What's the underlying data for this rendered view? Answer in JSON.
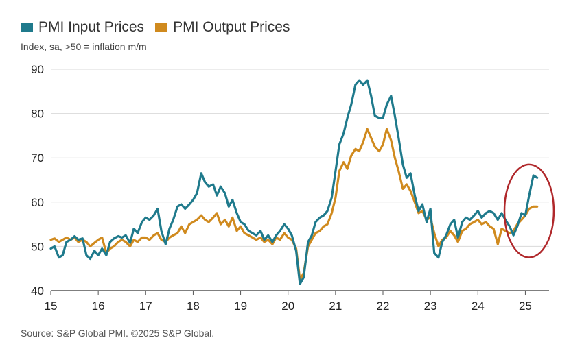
{
  "chart_data": {
    "type": "line",
    "title": "",
    "subtitle": "Index, sa, >50 = inflation m/m",
    "xlabel": "",
    "ylabel": "",
    "ylim": [
      40,
      90
    ],
    "yticks": [
      40,
      50,
      60,
      70,
      80,
      90
    ],
    "xlim": [
      2015,
      2025.5
    ],
    "xticks": [
      2015,
      2016,
      2017,
      2018,
      2019,
      2020,
      2021,
      2022,
      2023,
      2024,
      2025
    ],
    "xtick_labels": [
      "15",
      "16",
      "17",
      "18",
      "19",
      "20",
      "21",
      "22",
      "23",
      "24",
      "25"
    ],
    "legend": "top-left",
    "grid": "horizontal",
    "series": [
      {
        "name": "PMI Input Prices",
        "color": "#1f7a8c",
        "points": [
          [
            2015.0,
            49.5
          ],
          [
            2015.08,
            50.0
          ],
          [
            2015.17,
            47.5
          ],
          [
            2015.25,
            48.0
          ],
          [
            2015.33,
            51.0
          ],
          [
            2015.42,
            51.5
          ],
          [
            2015.5,
            52.3
          ],
          [
            2015.58,
            51.5
          ],
          [
            2015.67,
            51.8
          ],
          [
            2015.75,
            48.0
          ],
          [
            2015.83,
            47.2
          ],
          [
            2015.92,
            49.0
          ],
          [
            2016.0,
            48.0
          ],
          [
            2016.08,
            49.5
          ],
          [
            2016.17,
            48.0
          ],
          [
            2016.25,
            51.0
          ],
          [
            2016.33,
            51.8
          ],
          [
            2016.42,
            52.3
          ],
          [
            2016.5,
            52.0
          ],
          [
            2016.58,
            52.5
          ],
          [
            2016.67,
            50.8
          ],
          [
            2016.75,
            54.0
          ],
          [
            2016.83,
            53.0
          ],
          [
            2016.92,
            55.5
          ],
          [
            2017.0,
            56.5
          ],
          [
            2017.08,
            56.0
          ],
          [
            2017.17,
            57.0
          ],
          [
            2017.25,
            58.5
          ],
          [
            2017.33,
            53.5
          ],
          [
            2017.42,
            50.5
          ],
          [
            2017.5,
            54.0
          ],
          [
            2017.58,
            56.0
          ],
          [
            2017.67,
            59.0
          ],
          [
            2017.75,
            59.5
          ],
          [
            2017.83,
            58.5
          ],
          [
            2017.92,
            59.5
          ],
          [
            2018.0,
            60.5
          ],
          [
            2018.08,
            62.0
          ],
          [
            2018.17,
            66.5
          ],
          [
            2018.25,
            64.5
          ],
          [
            2018.33,
            63.5
          ],
          [
            2018.42,
            64.0
          ],
          [
            2018.5,
            61.5
          ],
          [
            2018.58,
            63.5
          ],
          [
            2018.67,
            62.0
          ],
          [
            2018.75,
            59.0
          ],
          [
            2018.83,
            60.5
          ],
          [
            2018.92,
            57.5
          ],
          [
            2019.0,
            55.5
          ],
          [
            2019.08,
            55.0
          ],
          [
            2019.17,
            53.5
          ],
          [
            2019.25,
            53.0
          ],
          [
            2019.33,
            52.5
          ],
          [
            2019.42,
            53.5
          ],
          [
            2019.5,
            51.5
          ],
          [
            2019.58,
            52.5
          ],
          [
            2019.67,
            51.0
          ],
          [
            2019.75,
            52.5
          ],
          [
            2019.83,
            53.5
          ],
          [
            2019.92,
            55.0
          ],
          [
            2020.0,
            54.0
          ],
          [
            2020.08,
            52.5
          ],
          [
            2020.17,
            49.0
          ],
          [
            2020.25,
            41.5
          ],
          [
            2020.33,
            43.0
          ],
          [
            2020.42,
            51.0
          ],
          [
            2020.5,
            52.5
          ],
          [
            2020.58,
            55.5
          ],
          [
            2020.67,
            56.5
          ],
          [
            2020.75,
            57.0
          ],
          [
            2020.83,
            58.0
          ],
          [
            2020.92,
            61.0
          ],
          [
            2021.0,
            67.0
          ],
          [
            2021.08,
            73.0
          ],
          [
            2021.17,
            75.5
          ],
          [
            2021.25,
            79.0
          ],
          [
            2021.33,
            82.0
          ],
          [
            2021.42,
            86.5
          ],
          [
            2021.5,
            87.5
          ],
          [
            2021.58,
            86.5
          ],
          [
            2021.67,
            87.5
          ],
          [
            2021.75,
            84.0
          ],
          [
            2021.83,
            79.5
          ],
          [
            2021.92,
            79.0
          ],
          [
            2022.0,
            79.0
          ],
          [
            2022.08,
            82.0
          ],
          [
            2022.17,
            84.0
          ],
          [
            2022.25,
            79.5
          ],
          [
            2022.33,
            74.5
          ],
          [
            2022.42,
            68.5
          ],
          [
            2022.5,
            65.5
          ],
          [
            2022.58,
            66.5
          ],
          [
            2022.67,
            61.5
          ],
          [
            2022.75,
            58.0
          ],
          [
            2022.83,
            59.5
          ],
          [
            2022.92,
            55.5
          ],
          [
            2023.0,
            58.5
          ],
          [
            2023.08,
            48.5
          ],
          [
            2023.17,
            47.5
          ],
          [
            2023.25,
            51.0
          ],
          [
            2023.33,
            52.5
          ],
          [
            2023.42,
            55.0
          ],
          [
            2023.5,
            56.0
          ],
          [
            2023.58,
            52.0
          ],
          [
            2023.67,
            55.5
          ],
          [
            2023.75,
            56.5
          ],
          [
            2023.83,
            56.0
          ],
          [
            2023.92,
            57.0
          ],
          [
            2024.0,
            58.0
          ],
          [
            2024.08,
            56.5
          ],
          [
            2024.17,
            57.5
          ],
          [
            2024.25,
            58.0
          ],
          [
            2024.33,
            57.5
          ],
          [
            2024.42,
            56.0
          ],
          [
            2024.5,
            57.5
          ],
          [
            2024.58,
            56.0
          ],
          [
            2024.67,
            54.5
          ],
          [
            2024.75,
            52.5
          ],
          [
            2024.83,
            54.5
          ],
          [
            2024.92,
            57.5
          ],
          [
            2025.0,
            57.0
          ],
          [
            2025.08,
            61.5
          ],
          [
            2025.17,
            66.0
          ],
          [
            2025.25,
            65.5
          ]
        ]
      },
      {
        "name": "PMI Output Prices",
        "color": "#d08a1e",
        "points": [
          [
            2015.0,
            51.5
          ],
          [
            2015.08,
            51.8
          ],
          [
            2015.17,
            51.0
          ],
          [
            2015.25,
            51.5
          ],
          [
            2015.33,
            52.0
          ],
          [
            2015.42,
            51.5
          ],
          [
            2015.5,
            52.0
          ],
          [
            2015.58,
            51.0
          ],
          [
            2015.67,
            51.5
          ],
          [
            2015.75,
            51.0
          ],
          [
            2015.83,
            50.0
          ],
          [
            2015.92,
            50.8
          ],
          [
            2016.0,
            51.5
          ],
          [
            2016.08,
            52.0
          ],
          [
            2016.17,
            48.5
          ],
          [
            2016.25,
            49.5
          ],
          [
            2016.33,
            50.0
          ],
          [
            2016.42,
            51.0
          ],
          [
            2016.5,
            51.5
          ],
          [
            2016.58,
            51.0
          ],
          [
            2016.67,
            50.0
          ],
          [
            2016.75,
            51.5
          ],
          [
            2016.83,
            51.0
          ],
          [
            2016.92,
            52.0
          ],
          [
            2017.0,
            52.0
          ],
          [
            2017.08,
            51.5
          ],
          [
            2017.17,
            52.5
          ],
          [
            2017.25,
            53.0
          ],
          [
            2017.33,
            51.5
          ],
          [
            2017.42,
            51.0
          ],
          [
            2017.5,
            52.0
          ],
          [
            2017.58,
            52.5
          ],
          [
            2017.67,
            53.0
          ],
          [
            2017.75,
            54.5
          ],
          [
            2017.83,
            53.0
          ],
          [
            2017.92,
            55.0
          ],
          [
            2018.0,
            55.5
          ],
          [
            2018.08,
            56.0
          ],
          [
            2018.17,
            57.0
          ],
          [
            2018.25,
            56.0
          ],
          [
            2018.33,
            55.5
          ],
          [
            2018.42,
            56.5
          ],
          [
            2018.5,
            57.5
          ],
          [
            2018.58,
            55.0
          ],
          [
            2018.67,
            56.0
          ],
          [
            2018.75,
            54.5
          ],
          [
            2018.83,
            56.5
          ],
          [
            2018.92,
            53.5
          ],
          [
            2019.0,
            54.5
          ],
          [
            2019.08,
            53.0
          ],
          [
            2019.17,
            52.5
          ],
          [
            2019.25,
            52.0
          ],
          [
            2019.33,
            51.5
          ],
          [
            2019.42,
            52.0
          ],
          [
            2019.5,
            51.0
          ],
          [
            2019.58,
            51.5
          ],
          [
            2019.67,
            50.5
          ],
          [
            2019.75,
            52.0
          ],
          [
            2019.83,
            51.5
          ],
          [
            2019.92,
            53.0
          ],
          [
            2020.0,
            52.0
          ],
          [
            2020.08,
            51.5
          ],
          [
            2020.17,
            49.5
          ],
          [
            2020.25,
            42.5
          ],
          [
            2020.33,
            44.0
          ],
          [
            2020.42,
            50.0
          ],
          [
            2020.5,
            51.5
          ],
          [
            2020.58,
            53.0
          ],
          [
            2020.67,
            53.5
          ],
          [
            2020.75,
            54.5
          ],
          [
            2020.83,
            55.0
          ],
          [
            2020.92,
            57.5
          ],
          [
            2021.0,
            61.0
          ],
          [
            2021.08,
            67.0
          ],
          [
            2021.17,
            69.0
          ],
          [
            2021.25,
            67.5
          ],
          [
            2021.33,
            70.5
          ],
          [
            2021.42,
            72.0
          ],
          [
            2021.5,
            71.5
          ],
          [
            2021.58,
            73.5
          ],
          [
            2021.67,
            76.5
          ],
          [
            2021.75,
            74.5
          ],
          [
            2021.83,
            72.5
          ],
          [
            2021.92,
            71.5
          ],
          [
            2022.0,
            73.0
          ],
          [
            2022.08,
            76.5
          ],
          [
            2022.17,
            74.0
          ],
          [
            2022.25,
            70.0
          ],
          [
            2022.33,
            67.0
          ],
          [
            2022.42,
            63.0
          ],
          [
            2022.5,
            64.0
          ],
          [
            2022.58,
            62.5
          ],
          [
            2022.67,
            60.0
          ],
          [
            2022.75,
            57.5
          ],
          [
            2022.83,
            58.0
          ],
          [
            2022.92,
            56.0
          ],
          [
            2023.0,
            56.5
          ],
          [
            2023.08,
            53.0
          ],
          [
            2023.17,
            50.0
          ],
          [
            2023.25,
            51.5
          ],
          [
            2023.33,
            52.0
          ],
          [
            2023.42,
            53.5
          ],
          [
            2023.5,
            52.5
          ],
          [
            2023.58,
            51.0
          ],
          [
            2023.67,
            53.5
          ],
          [
            2023.75,
            54.0
          ],
          [
            2023.83,
            55.0
          ],
          [
            2023.92,
            55.5
          ],
          [
            2024.0,
            56.0
          ],
          [
            2024.08,
            55.0
          ],
          [
            2024.17,
            55.5
          ],
          [
            2024.25,
            54.5
          ],
          [
            2024.33,
            54.0
          ],
          [
            2024.42,
            50.5
          ],
          [
            2024.5,
            54.0
          ],
          [
            2024.58,
            53.5
          ],
          [
            2024.67,
            53.0
          ],
          [
            2024.75,
            53.5
          ],
          [
            2024.83,
            55.0
          ],
          [
            2024.92,
            56.0
          ],
          [
            2025.0,
            57.0
          ],
          [
            2025.08,
            58.5
          ],
          [
            2025.17,
            59.0
          ],
          [
            2025.25,
            59.0
          ]
        ]
      }
    ],
    "annotations": [
      {
        "type": "ellipse",
        "label": "",
        "color": "#b0282b",
        "x": 2025.08,
        "y": 58.0,
        "rx_years": 0.52,
        "ry_index": 10.5
      }
    ]
  },
  "source": "Source: S&P Global PMI. ©2025 S&P Global."
}
